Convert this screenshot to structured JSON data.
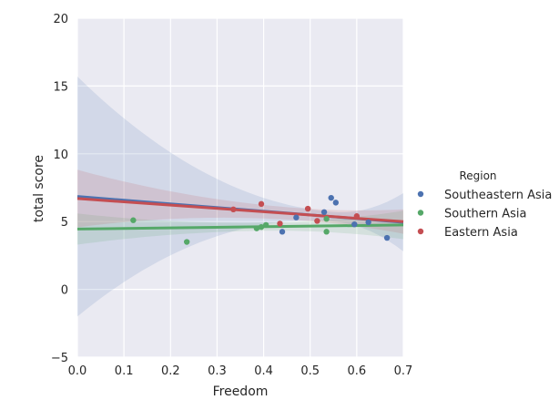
{
  "chart_data": {
    "type": "scatter",
    "title": "",
    "xlabel": "Freedom",
    "ylabel": "total score",
    "xlim": [
      0.0,
      0.7
    ],
    "ylim": [
      -5,
      20
    ],
    "xticks": [
      "0.0",
      "0.1",
      "0.2",
      "0.3",
      "0.4",
      "0.5",
      "0.6",
      "0.7"
    ],
    "xtick_values": [
      0.0,
      0.1,
      0.2,
      0.3,
      0.4,
      0.5,
      0.6,
      0.7
    ],
    "yticks": [
      "−5",
      "0",
      "5",
      "10",
      "15",
      "20"
    ],
    "ytick_values": [
      -5,
      0,
      5,
      10,
      15,
      20
    ],
    "grid": true,
    "background": "#EAEAF2",
    "legend": {
      "title": "Region",
      "placement": "right"
    },
    "series": [
      {
        "name": "Southeastern Asia",
        "color": "#4C72B0",
        "points": [
          [
            0.44,
            4.25
          ],
          [
            0.47,
            5.3
          ],
          [
            0.53,
            5.7
          ],
          [
            0.545,
            6.75
          ],
          [
            0.555,
            6.4
          ],
          [
            0.595,
            4.8
          ],
          [
            0.625,
            4.95
          ],
          [
            0.665,
            3.8
          ]
        ],
        "fit": {
          "y_at_xmin": 6.85,
          "y_at_xmax": 4.95
        },
        "ci": {
          "lower_at_xmin": 0.45,
          "upper_at_xmin": 18.15,
          "center_at_xmid": 5.3,
          "halfwidth_at_xmid": 0.35,
          "lower_at_xmax": 3.0,
          "upper_at_xmax": 7.3,
          "xmid": 0.55
        }
      },
      {
        "name": "Southern Asia",
        "color": "#55A868",
        "points": [
          [
            0.12,
            5.1
          ],
          [
            0.235,
            3.5
          ],
          [
            0.385,
            4.5
          ],
          [
            0.395,
            4.6
          ],
          [
            0.405,
            4.75
          ],
          [
            0.535,
            4.25
          ],
          [
            0.535,
            5.2
          ]
        ],
        "fit": {
          "y_at_xmin": 4.45,
          "y_at_xmax": 4.75
        },
        "ci": {
          "lower_at_xmin": 3.3,
          "upper_at_xmin": 5.6,
          "center_at_xmid": 4.6,
          "halfwidth_at_xmid": 0.3,
          "lower_at_xmax": 3.7,
          "upper_at_xmax": 5.8,
          "xmid": 0.4
        }
      },
      {
        "name": "Eastern Asia",
        "color": "#C44E52",
        "points": [
          [
            0.335,
            5.9
          ],
          [
            0.395,
            6.3
          ],
          [
            0.435,
            4.85
          ],
          [
            0.495,
            5.95
          ],
          [
            0.515,
            5.05
          ],
          [
            0.6,
            5.4
          ]
        ],
        "fit": {
          "y_at_xmin": 6.7,
          "y_at_xmax": 5.0
        },
        "ci": {
          "lower_at_xmin": 4.6,
          "upper_at_xmin": 8.85,
          "center_at_xmid": 5.45,
          "halfwidth_at_xmid": 0.45,
          "lower_at_xmax": 4.1,
          "upper_at_xmax": 5.9,
          "xmid": 0.48
        }
      }
    ]
  }
}
